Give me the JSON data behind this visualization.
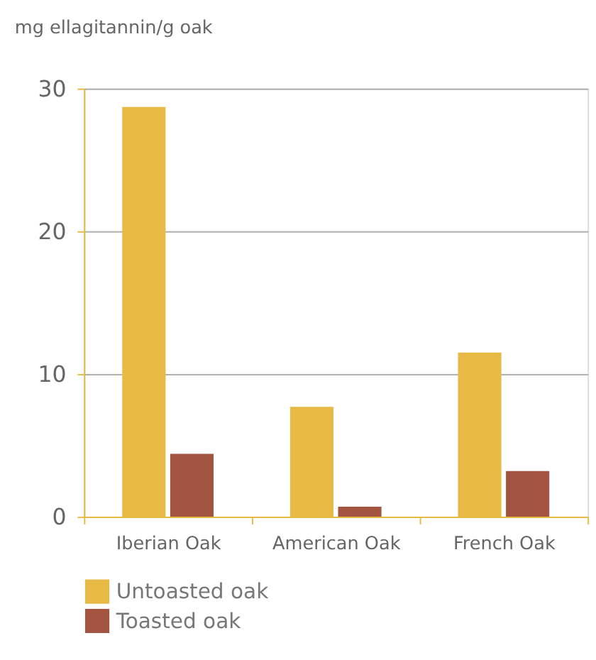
{
  "chart_data": {
    "type": "bar",
    "ylabel": "mg ellagitannin/g oak",
    "categories": [
      "Iberian Oak",
      "American Oak",
      "French Oak"
    ],
    "series": [
      {
        "name": "Untoasted oak",
        "color": "#e6ba44",
        "values": [
          28.7,
          7.7,
          11.5
        ]
      },
      {
        "name": "Toasted oak",
        "color": "#a35440",
        "values": [
          4.4,
          0.7,
          3.2
        ]
      }
    ],
    "ylim": [
      0,
      30
    ],
    "yticks": [
      0,
      10,
      20,
      30
    ],
    "grid": "y",
    "legend": "bottom"
  }
}
